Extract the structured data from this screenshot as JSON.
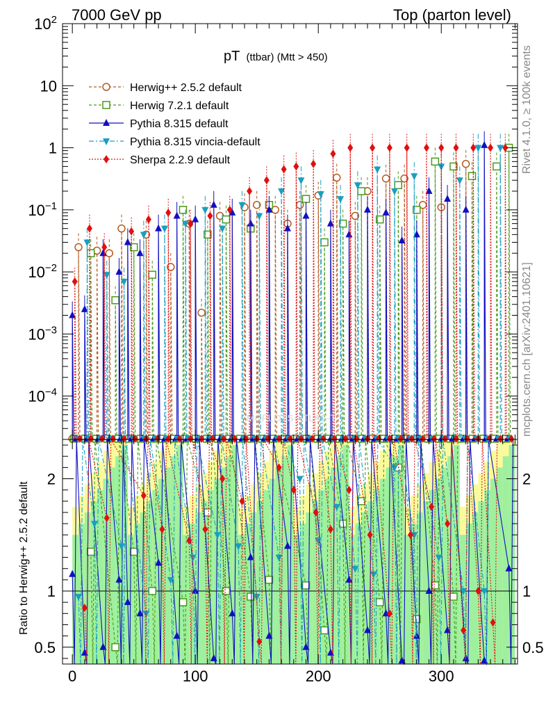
{
  "header": {
    "left": "7000 GeV pp",
    "right": "Top (parton level)"
  },
  "side_labels": {
    "rivet": "Rivet 4.1.0, ≥ 100k events",
    "mcplots": "mcplots.cern.ch [arXiv:2401.10621]"
  },
  "chart_data": {
    "type": "line",
    "title_main": "pT",
    "title_sub": "(ttbar) (Mtt > 450)",
    "watermark": "MCPLOTS-ATLAS-T",
    "xlim": [
      -8,
      362
    ],
    "ylim_main": [
      2e-05,
      100
    ],
    "ylim_ratio": [
      0.35,
      2.35
    ],
    "ylabel_ratio": "Ratio to Herwig++ 2.5.2 default",
    "x_ticks": [
      0,
      100,
      200,
      300
    ],
    "x_tick_labels": [
      "0",
      "100",
      "200",
      "300"
    ],
    "ratio_ticks": [
      0.5,
      1,
      2
    ],
    "ratio_tick_labels": [
      "0.5",
      "1",
      "2"
    ],
    "main_ticks": [
      {
        "value": 100,
        "base": "10",
        "exp": "2"
      },
      {
        "value": 10,
        "base": "10",
        "exp": ""
      },
      {
        "value": 1,
        "base": "1",
        "exp": ""
      },
      {
        "value": 0.1,
        "base": "10",
        "exp": "−1"
      },
      {
        "value": 0.01,
        "base": "10",
        "exp": "−2"
      },
      {
        "value": 0.001,
        "base": "10",
        "exp": "−3"
      },
      {
        "value": 0.0001,
        "base": "10",
        "exp": "−4"
      }
    ],
    "series": [
      {
        "name": "Herwig++ 2.5.2 default",
        "color": "#b35a1f",
        "dash": "4,3",
        "marker": "circle-open",
        "x": [
          5,
          20,
          30,
          40,
          60,
          80,
          95,
          105,
          120,
          140,
          150,
          165,
          175,
          185,
          200,
          215,
          230,
          240,
          255,
          270,
          285,
          300,
          320
        ],
        "y": [
          0.025,
          0.022,
          0.02,
          0.05,
          0.04,
          0.012,
          0.06,
          0.0022,
          0.08,
          0.11,
          0.12,
          0.1,
          0.06,
          0.12,
          0.17,
          0.33,
          0.08,
          0.2,
          0.32,
          0.32,
          0.12,
          0.11,
          0.55
        ]
      },
      {
        "name": "Herwig 7.2.1 default",
        "color": "#4a9a1a",
        "dash": "4,3",
        "marker": "square-open",
        "x": [
          15,
          35,
          50,
          65,
          90,
          110,
          125,
          145,
          160,
          190,
          205,
          220,
          235,
          250,
          265,
          280,
          295,
          310,
          325,
          345,
          355
        ],
        "y": [
          0.02,
          0.0035,
          0.025,
          0.009,
          0.1,
          0.04,
          0.07,
          0.05,
          0.12,
          0.15,
          0.03,
          0.06,
          0.2,
          0.07,
          0.25,
          0.1,
          0.6,
          0.5,
          0.35,
          0.5,
          1.0
        ]
      },
      {
        "name": "Pythia 8.315 default",
        "color": "#1010c0",
        "dash": "",
        "marker": "triangle-up",
        "x": [
          0,
          10,
          25,
          38,
          45,
          55,
          70,
          85,
          100,
          115,
          130,
          145,
          160,
          175,
          190,
          210,
          225,
          240,
          255,
          268,
          280,
          290,
          305,
          320,
          335
        ],
        "y": [
          0.002,
          0.0025,
          0.02,
          0.01,
          0.03,
          0.02,
          0.05,
          0.08,
          0.07,
          0.12,
          0.09,
          0.06,
          0.1,
          0.05,
          0.08,
          0.06,
          0.04,
          0.1,
          0.09,
          0.032,
          0.04,
          0.2,
          0.15,
          0.1,
          1.1
        ]
      },
      {
        "name": "Pythia 8.315 vincia-default",
        "color": "#1a9fc0",
        "dash": "7,3,2,3",
        "marker": "triangle-down",
        "x": [
          12,
          28,
          42,
          58,
          75,
          92,
          108,
          122,
          138,
          152,
          170,
          186,
          202,
          218,
          232,
          248,
          262,
          278,
          300,
          315,
          330,
          348
        ],
        "y": [
          0.03,
          0.009,
          0.007,
          0.04,
          0.05,
          0.06,
          0.1,
          0.05,
          0.12,
          0.08,
          0.2,
          0.3,
          0.18,
          0.15,
          0.25,
          0.45,
          0.2,
          0.35,
          0.5,
          0.3,
          1.0,
          1.0
        ]
      },
      {
        "name": "Sherpa 2.2.9 default",
        "color": "#e01010",
        "dash": "2,2",
        "marker": "diamond",
        "x": [
          2,
          14,
          26,
          48,
          62,
          78,
          96,
          112,
          128,
          144,
          158,
          172,
          182,
          196,
          212,
          226,
          244,
          258,
          272,
          288,
          300,
          312,
          326,
          340,
          352
        ],
        "y": [
          0.007,
          0.05,
          0.025,
          0.045,
          0.07,
          0.09,
          0.06,
          0.08,
          0.1,
          0.2,
          0.3,
          0.45,
          0.5,
          0.55,
          0.8,
          1.0,
          1.0,
          1.0,
          1.0,
          1.0,
          1.0,
          1.0,
          1.0,
          1.0,
          1.0
        ]
      }
    ],
    "ratio_series": [
      {
        "name": "Herwig 7.2.1 default",
        "x": [
          15,
          35,
          50,
          65,
          90,
          110,
          125,
          145,
          160,
          190,
          205,
          220,
          235,
          250,
          265,
          280,
          295,
          310
        ],
        "y": [
          1.35,
          0.5,
          1.35,
          1.0,
          0.9,
          1.7,
          1.0,
          0.95,
          1.1,
          1.05,
          0.65,
          1.6,
          1.8,
          0.9,
          2.1,
          0.75,
          1.05,
          0.95
        ]
      },
      {
        "name": "Pythia 8.315 default",
        "x": [
          0,
          10,
          25,
          38,
          45,
          55,
          70,
          85,
          100,
          115,
          130,
          145,
          160,
          175,
          190,
          210,
          225,
          240,
          255,
          268,
          280,
          290,
          305,
          320,
          335,
          355
        ],
        "y": [
          1.15,
          0.45,
          0.5,
          1.1,
          0.9,
          0.8,
          1.25,
          0.6,
          1.0,
          0.4,
          0.8,
          1.3,
          0.6,
          1.4,
          0.5,
          0.45,
          1.1,
          0.65,
          0.8,
          0.38,
          0.6,
          1.0,
          0.65,
          0.4,
          0.38,
          1.2
        ]
      },
      {
        "name": "Pythia 8.315 vincia-default",
        "x": [
          5,
          18,
          40,
          60,
          80,
          98,
          118,
          135,
          150,
          168,
          185,
          200,
          215,
          230,
          245,
          262,
          278,
          298,
          318,
          335
        ],
        "y": [
          0.95,
          1.6,
          1.4,
          0.8,
          1.1,
          1.3,
          1.5,
          1.4,
          0.95,
          1.3,
          2.0,
          1.45,
          1.75,
          1.2,
          1.15,
          2.1,
          1.5,
          1.3,
          1.0,
          1.0
        ]
      },
      {
        "name": "Sherpa 2.2.9 default",
        "x": [
          10,
          28,
          58,
          73,
          95,
          108,
          122,
          138,
          152,
          168,
          180,
          198,
          210,
          225,
          242,
          258,
          275,
          292,
          305,
          318,
          330,
          342
        ],
        "y": [
          0.85,
          1.65,
          1.85,
          1.55,
          1.45,
          1.55,
          2.0,
          1.8,
          0.55,
          2.1,
          1.9,
          1.7,
          1.55,
          1.9,
          1.5,
          0.8,
          1.5,
          1.75,
          1.6,
          0.65,
          1.0,
          0.72
        ]
      }
    ]
  }
}
